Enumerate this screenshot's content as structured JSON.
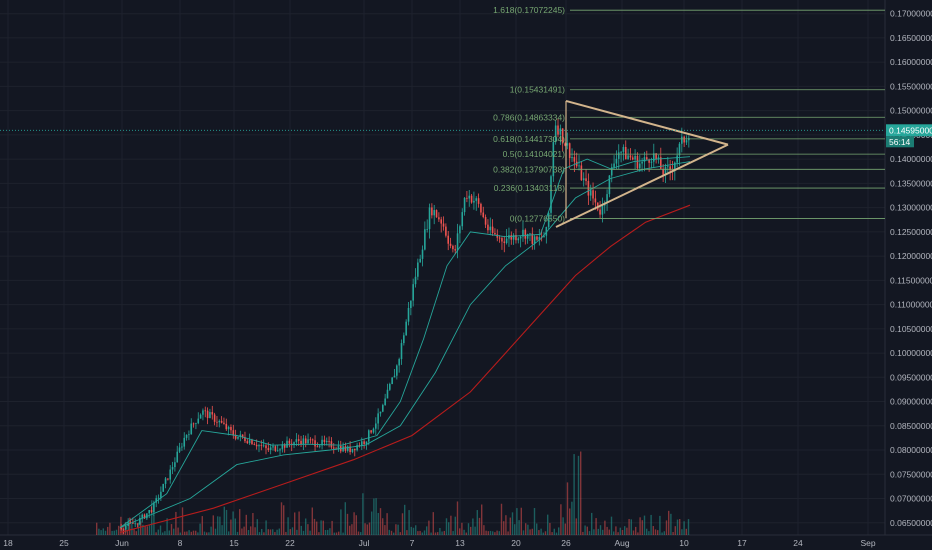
{
  "chart_data": {
    "type": "candlestick",
    "title": "",
    "y_axis": {
      "ticks": [
        "0.17000000",
        "0.16500000",
        "0.16000000",
        "0.15500000",
        "0.15000000",
        "0.14500000",
        "0.14000000",
        "0.13500000",
        "0.13000000",
        "0.12500000",
        "0.12000000",
        "0.11500000",
        "0.11000000",
        "0.10500000",
        "0.10000000",
        "0.09500000",
        "0.09000000",
        "0.08500000",
        "0.08000000",
        "0.07500000",
        "0.07000000",
        "0.06500000"
      ],
      "range": [
        0.0633,
        0.172
      ]
    },
    "x_axis": {
      "ticks": [
        "18",
        "25",
        "Jun",
        "8",
        "15",
        "22",
        "Jul",
        "7",
        "13",
        "20",
        "26",
        "Aug",
        "10",
        "17",
        "24",
        "Sep"
      ]
    },
    "current_price": {
      "value": "0.14595000",
      "countdown": "56:14",
      "numeric": 0.14595
    },
    "fibonacci_levels": [
      {
        "label": "1.618(0.17072245)",
        "value": 0.17072245
      },
      {
        "label": "1(0.15431491)",
        "value": 0.15431491
      },
      {
        "label": "0.786(0.14863334)",
        "value": 0.14863334
      },
      {
        "label": "0.618(0.14417304)",
        "value": 0.14417304
      },
      {
        "label": "0.5(0.14104021)",
        "value": 0.14104021
      },
      {
        "label": "0.382(0.13790738)",
        "value": 0.13790738
      },
      {
        "label": "0.236(0.13403118)",
        "value": 0.13403118
      },
      {
        "label": "0(0.12776550)",
        "value": 0.1277655
      }
    ],
    "price_path": [
      [
        0,
        0.064
      ],
      [
        14,
        0.065
      ],
      [
        28,
        0.068
      ],
      [
        42,
        0.075
      ],
      [
        56,
        0.083
      ],
      [
        70,
        0.088
      ],
      [
        84,
        0.086
      ],
      [
        98,
        0.083
      ],
      [
        112,
        0.082
      ],
      [
        126,
        0.08
      ],
      [
        140,
        0.081
      ],
      [
        154,
        0.082
      ],
      [
        168,
        0.0815
      ],
      [
        182,
        0.081
      ],
      [
        196,
        0.08
      ],
      [
        210,
        0.082
      ],
      [
        224,
        0.088
      ],
      [
        238,
        0.098
      ],
      [
        252,
        0.115
      ],
      [
        266,
        0.13
      ],
      [
        276,
        0.127
      ],
      [
        286,
        0.12
      ],
      [
        296,
        0.133
      ],
      [
        306,
        0.131
      ],
      [
        316,
        0.125
      ],
      [
        326,
        0.1235
      ],
      [
        336,
        0.124
      ],
      [
        346,
        0.125
      ],
      [
        356,
        0.1228
      ],
      [
        366,
        0.125
      ],
      [
        372,
        0.148
      ],
      [
        382,
        0.143
      ],
      [
        392,
        0.138
      ],
      [
        402,
        0.133
      ],
      [
        412,
        0.129
      ],
      [
        418,
        0.135
      ],
      [
        426,
        0.142
      ],
      [
        436,
        0.1405
      ],
      [
        446,
        0.139
      ],
      [
        456,
        0.141
      ],
      [
        466,
        0.137
      ],
      [
        472,
        0.138
      ],
      [
        480,
        0.143
      ],
      [
        488,
        0.146
      ]
    ],
    "moving_averages": [
      {
        "name": "",
        "color": "#26a69a",
        "points": [
          [
            0,
            0.064
          ],
          [
            40,
            0.071
          ],
          [
            70,
            0.084
          ],
          [
            100,
            0.083
          ],
          [
            130,
            0.081
          ],
          [
            160,
            0.0812
          ],
          [
            190,
            0.081
          ],
          [
            220,
            0.083
          ],
          [
            240,
            0.09
          ],
          [
            260,
            0.103
          ],
          [
            280,
            0.118
          ],
          [
            300,
            0.125
          ],
          [
            330,
            0.124
          ],
          [
            360,
            0.1245
          ],
          [
            380,
            0.138
          ],
          [
            400,
            0.14
          ],
          [
            420,
            0.138
          ],
          [
            440,
            0.1395
          ],
          [
            460,
            0.14
          ],
          [
            488,
            0.1405
          ]
        ]
      },
      {
        "name": "",
        "color": "#26a69a",
        "points": [
          [
            0,
            0.064
          ],
          [
            60,
            0.07
          ],
          [
            100,
            0.077
          ],
          [
            140,
            0.079
          ],
          [
            180,
            0.08
          ],
          [
            210,
            0.081
          ],
          [
            240,
            0.085
          ],
          [
            270,
            0.096
          ],
          [
            300,
            0.11
          ],
          [
            330,
            0.118
          ],
          [
            360,
            0.1235
          ],
          [
            390,
            0.132
          ],
          [
            420,
            0.136
          ],
          [
            450,
            0.138
          ],
          [
            488,
            0.1395
          ]
        ]
      },
      {
        "name": "",
        "color": "#b71c1c",
        "points": [
          [
            0,
            0.063
          ],
          [
            80,
            0.068
          ],
          [
            140,
            0.073
          ],
          [
            200,
            0.078
          ],
          [
            250,
            0.083
          ],
          [
            300,
            0.092
          ],
          [
            330,
            0.1
          ],
          [
            360,
            0.108
          ],
          [
            390,
            0.116
          ],
          [
            420,
            0.122
          ],
          [
            450,
            0.127
          ],
          [
            488,
            0.1305
          ]
        ]
      }
    ],
    "triangle": {
      "apex_x_index": 535,
      "upper_start": [
        0.152
      ],
      "lower_start": [
        0.126
      ],
      "apex_price": 0.143
    },
    "grid": "on",
    "legend": ""
  }
}
